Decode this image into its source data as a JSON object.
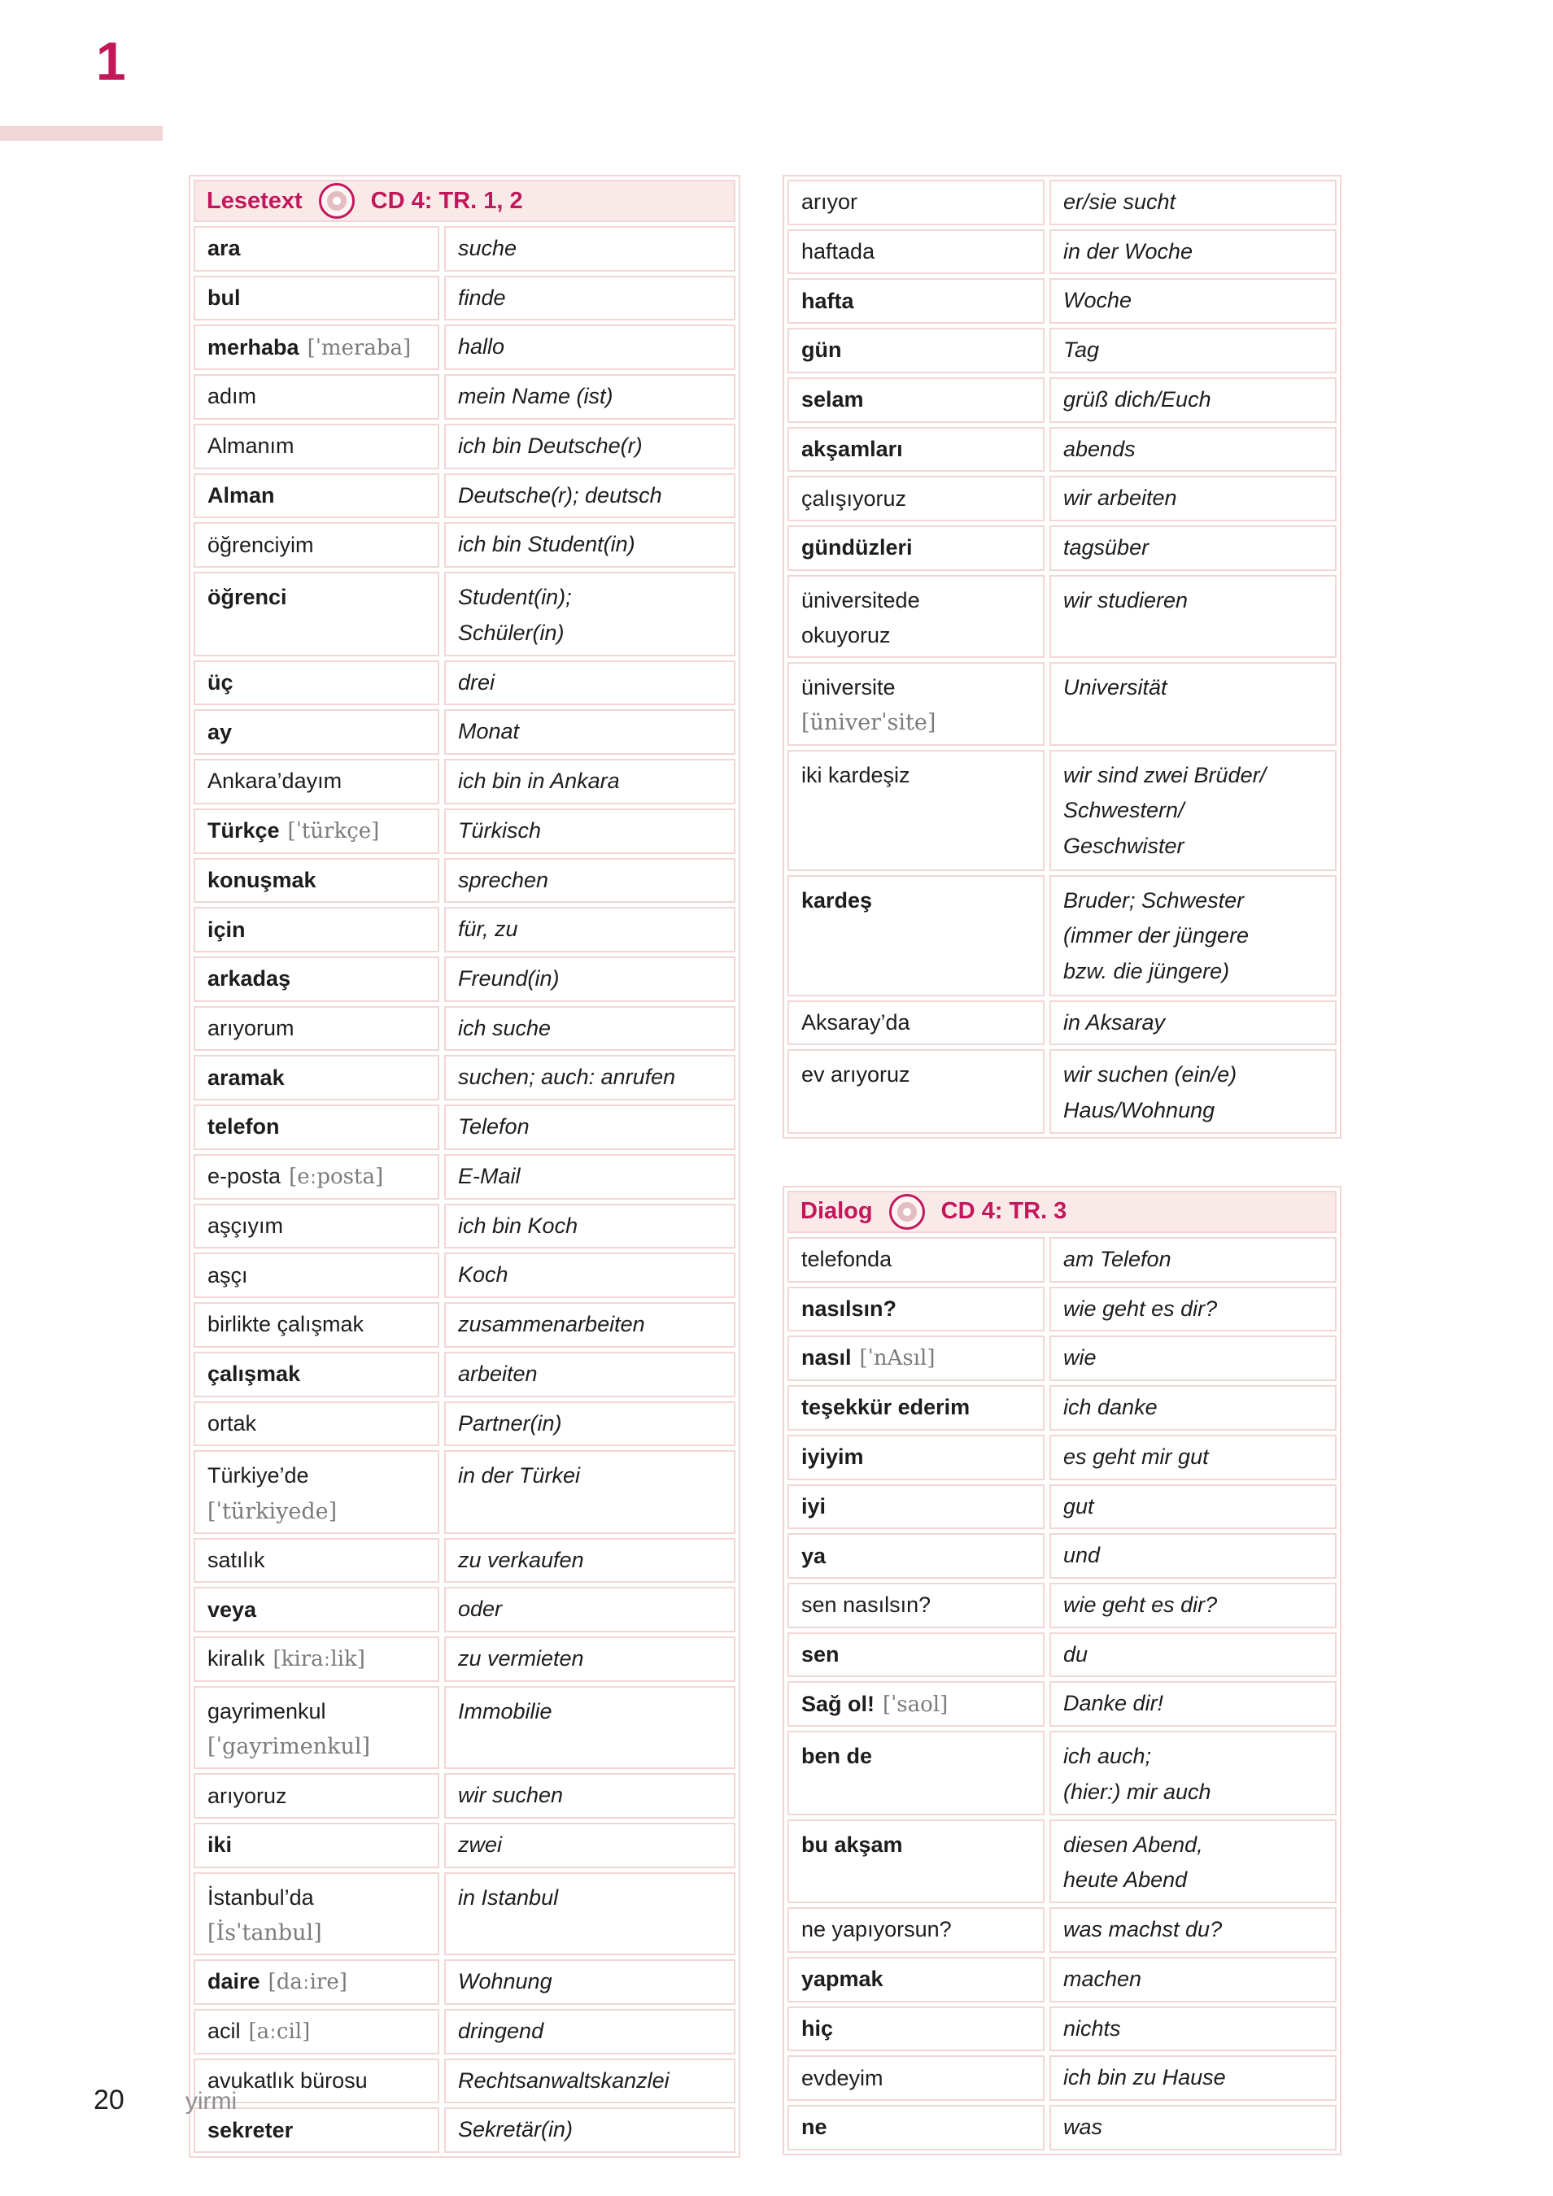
{
  "page": {
    "unit_number": "1"
  },
  "colors": {
    "accent": "#c2185b",
    "cell_border": "#f2d6d6",
    "header_bg": "#f9e9e9",
    "phonetic_gray": "#7b7b7b"
  },
  "tables": {
    "lesetext": {
      "header": {
        "label": "Lesetext",
        "cd_label": "CD 4: TR. 1, 2",
        "icon": "cd-icon"
      },
      "rows": [
        {
          "tr": "ara",
          "bold": true,
          "de": [
            "suche"
          ]
        },
        {
          "tr": "bul",
          "bold": true,
          "de": [
            "finde"
          ]
        },
        {
          "tr": "merhaba",
          "bold": true,
          "phon": "[ˈmeraba]",
          "de": [
            "hallo"
          ]
        },
        {
          "tr": "adım",
          "bold": false,
          "de": [
            "mein Name (ist)"
          ]
        },
        {
          "tr": "Almanım",
          "bold": false,
          "de": [
            "ich bin Deutsche(r)"
          ]
        },
        {
          "tr": "Alman",
          "bold": true,
          "de": [
            "Deutsche(r); deutsch"
          ]
        },
        {
          "tr": "öğrenciyim",
          "bold": false,
          "de": [
            "ich bin Student(in)"
          ]
        },
        {
          "tr": "öğrenci",
          "bold": true,
          "de": [
            "Student(in);",
            "Schüler(in)"
          ]
        },
        {
          "tr": "üç",
          "bold": true,
          "de": [
            "drei"
          ]
        },
        {
          "tr": "ay",
          "bold": true,
          "de": [
            "Monat"
          ]
        },
        {
          "tr": "Ankara’dayım",
          "bold": false,
          "de": [
            "ich bin in Ankara"
          ]
        },
        {
          "tr": "Türkçe",
          "bold": true,
          "phon": "[ˈtürkçe]",
          "de": [
            "Türkisch"
          ]
        },
        {
          "tr": "konuşmak",
          "bold": true,
          "de": [
            "sprechen"
          ]
        },
        {
          "tr": "için",
          "bold": true,
          "de": [
            "für, zu"
          ]
        },
        {
          "tr": "arkadaş",
          "bold": true,
          "de": [
            "Freund(in)"
          ]
        },
        {
          "tr": "arıyorum",
          "bold": false,
          "de": [
            "ich suche"
          ]
        },
        {
          "tr": "aramak",
          "bold": true,
          "de": [
            "suchen; auch: anrufen"
          ]
        },
        {
          "tr": "telefon",
          "bold": true,
          "de": [
            "Telefon"
          ]
        },
        {
          "tr": "e-posta",
          "bold": false,
          "phon": "[eːposta]",
          "de": [
            "E-Mail"
          ]
        },
        {
          "tr": "aşçıyım",
          "bold": false,
          "de": [
            "ich bin Koch"
          ]
        },
        {
          "tr": "aşçı",
          "bold": false,
          "de": [
            "Koch"
          ]
        },
        {
          "tr": "birlikte çalışmak",
          "bold": false,
          "de": [
            "zusammenarbeiten"
          ]
        },
        {
          "tr": "çalışmak",
          "bold": true,
          "de": [
            "arbeiten"
          ]
        },
        {
          "tr": "ortak",
          "bold": false,
          "de": [
            "Partner(in)"
          ]
        },
        {
          "tr": "Türkiye’de",
          "bold": false,
          "line2": "[ˈtürkiyede]",
          "line2_phon": true,
          "de": [
            "in der Türkei"
          ]
        },
        {
          "tr": "satılık",
          "bold": false,
          "de": [
            "zu verkaufen"
          ]
        },
        {
          "tr": "veya",
          "bold": true,
          "de": [
            "oder"
          ]
        },
        {
          "tr": "kiralık",
          "bold": false,
          "phon": "[kiraːlik]",
          "de": [
            "zu vermieten"
          ]
        },
        {
          "tr": "gayrimenkul",
          "bold": false,
          "line2": "[ˈgayrimenkul]",
          "line2_phon": true,
          "de": [
            "Immobilie"
          ]
        },
        {
          "tr": "arıyoruz",
          "bold": false,
          "de": [
            "wir suchen"
          ]
        },
        {
          "tr": "iki",
          "bold": true,
          "de": [
            "zwei"
          ]
        },
        {
          "tr": "İstanbul’da",
          "bold": false,
          "line2": "[İsˈtanbul]",
          "line2_phon": true,
          "de": [
            "in Istanbul"
          ]
        },
        {
          "tr": "daire",
          "bold": true,
          "phon": "[daːire]",
          "de": [
            "Wohnung"
          ]
        },
        {
          "tr": "acil",
          "bold": false,
          "phon": "[aːcil]",
          "de": [
            "dringend"
          ]
        },
        {
          "tr": "avukatlık bürosu",
          "bold": false,
          "de": [
            "Rechtsanwaltskanzlei"
          ]
        },
        {
          "tr": "sekreter",
          "bold": true,
          "de": [
            "Sekretär(in)"
          ]
        }
      ]
    },
    "lesetext_cont": {
      "rows": [
        {
          "tr": "arıyor",
          "bold": false,
          "de": [
            "er/sie sucht"
          ]
        },
        {
          "tr": "haftada",
          "bold": false,
          "de": [
            "in der Woche"
          ]
        },
        {
          "tr": "hafta",
          "bold": true,
          "de": [
            "Woche"
          ]
        },
        {
          "tr": "gün",
          "bold": true,
          "de": [
            "Tag"
          ]
        },
        {
          "tr": "selam",
          "bold": true,
          "de": [
            "grüß dich/Euch"
          ]
        },
        {
          "tr": "akşamları",
          "bold": true,
          "de": [
            "abends"
          ]
        },
        {
          "tr": "çalışıyoruz",
          "bold": false,
          "de": [
            "wir arbeiten"
          ]
        },
        {
          "tr": "gündüzleri",
          "bold": true,
          "de": [
            "tagsüber"
          ]
        },
        {
          "tr": "üniversitede",
          "bold": false,
          "line2": "okuyoruz",
          "line2_phon": false,
          "de": [
            "wir studieren"
          ]
        },
        {
          "tr": "üniversite",
          "bold": false,
          "line2": "[üniverˈsite]",
          "line2_phon": true,
          "de": [
            "Universität"
          ]
        },
        {
          "tr": "iki kardeşiz",
          "bold": false,
          "de": [
            "wir sind zwei Brüder/",
            "Schwestern/",
            "Geschwister"
          ]
        },
        {
          "tr": "kardeş",
          "bold": true,
          "de": [
            "Bruder; Schwester",
            "(immer der jüngere",
            "bzw. die jüngere)"
          ]
        },
        {
          "tr": "Aksaray’da",
          "bold": false,
          "de": [
            "in Aksaray"
          ]
        },
        {
          "tr": "ev arıyoruz",
          "bold": false,
          "de": [
            "wir suchen (ein/e)",
            "Haus/Wohnung"
          ]
        }
      ]
    },
    "dialog": {
      "header": {
        "label": "Dialog",
        "cd_label": "CD 4: TR. 3",
        "icon": "cd-icon"
      },
      "rows": [
        {
          "tr": "telefonda",
          "bold": false,
          "de": [
            "am Telefon"
          ]
        },
        {
          "tr": "nasılsın?",
          "bold": true,
          "de": [
            "wie geht es dir?"
          ]
        },
        {
          "tr": "nasıl",
          "bold": true,
          "phon": "[ˈnAsıl]",
          "de": [
            "wie"
          ]
        },
        {
          "tr": "teşekkür ederim",
          "bold": true,
          "de": [
            "ich danke"
          ]
        },
        {
          "tr": "iyiyim",
          "bold": true,
          "de": [
            "es geht mir gut"
          ]
        },
        {
          "tr": "iyi",
          "bold": true,
          "de": [
            "gut"
          ]
        },
        {
          "tr": "ya",
          "bold": true,
          "de": [
            "und"
          ]
        },
        {
          "tr": "sen nasılsın?",
          "bold": false,
          "de": [
            "wie geht es dir?"
          ]
        },
        {
          "tr": "sen",
          "bold": true,
          "de": [
            "du"
          ]
        },
        {
          "tr": "Sağ ol!",
          "bold": true,
          "phon": "[ˈsaol]",
          "de": [
            "Danke dir!"
          ]
        },
        {
          "tr": "ben de",
          "bold": true,
          "de": [
            "ich auch;",
            "(hier:) mir auch"
          ]
        },
        {
          "tr": "bu akşam",
          "bold": true,
          "de": [
            "diesen Abend,",
            "heute Abend"
          ]
        },
        {
          "tr": "ne yapıyorsun?",
          "bold": false,
          "de": [
            "was machst du?"
          ]
        },
        {
          "tr": "yapmak",
          "bold": true,
          "de": [
            "machen"
          ]
        },
        {
          "tr": "hiç",
          "bold": true,
          "de": [
            "nichts"
          ]
        },
        {
          "tr": "evdeyim",
          "bold": false,
          "de": [
            "ich bin zu Hause"
          ]
        },
        {
          "tr": "ne",
          "bold": true,
          "de": [
            "was"
          ]
        }
      ]
    }
  },
  "footer": {
    "page_number": "20",
    "page_word": "yirmi"
  }
}
